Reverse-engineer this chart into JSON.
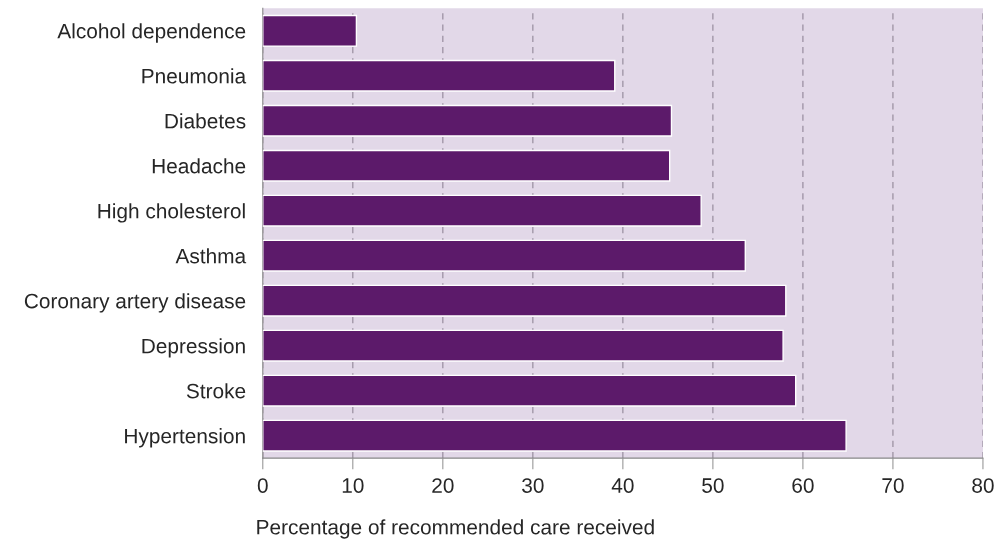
{
  "chart_data": {
    "type": "bar",
    "orientation": "horizontal",
    "xlabel": "Percentage of recommended care received",
    "categories": [
      "Alcohol dependence",
      "Pneumonia",
      "Diabetes",
      "Headache",
      "High cholesterol",
      "Asthma",
      "Coronary artery disease",
      "Depression",
      "Stroke",
      "Hypertension"
    ],
    "values": [
      10.4,
      39.1,
      45.4,
      45.2,
      48.7,
      53.6,
      58.1,
      57.8,
      59.2,
      64.8
    ],
    "color": "#5c1a6a",
    "xlim": [
      0,
      80
    ],
    "xticks": [
      0,
      10,
      20,
      30,
      40,
      50,
      60,
      70,
      80
    ],
    "grid": "x",
    "legend": false
  }
}
